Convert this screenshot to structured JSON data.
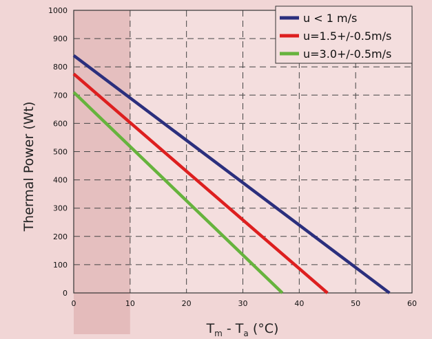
{
  "chart_data": {
    "type": "line",
    "xlabel_main": "T",
    "xlabel_sub_m": "m",
    "xlabel_mid": " - T",
    "xlabel_sub_a": "a",
    "xlabel_unit": " (°C)",
    "ylabel": "Thermal Power (Wt)",
    "xlim": [
      0,
      60
    ],
    "ylim": [
      0,
      1000
    ],
    "x_ticks": [
      0,
      10,
      20,
      30,
      40,
      50,
      60
    ],
    "y_ticks": [
      0,
      100,
      200,
      300,
      400,
      500,
      600,
      700,
      800,
      900,
      1000
    ],
    "grid": true,
    "legend_position": "top-right",
    "shaded_region": {
      "x": [
        0,
        10
      ]
    },
    "series": [
      {
        "name": "u < 1 m/s",
        "color": "#2b2f7d",
        "x": [
          0,
          56
        ],
        "y": [
          840,
          0
        ]
      },
      {
        "name": "u=1.5+/-0.5m/s",
        "color": "#dd1f1f",
        "x": [
          0,
          45
        ],
        "y": [
          775,
          0
        ]
      },
      {
        "name": "u=3.0+/-0.5m/s",
        "color": "#66b33d",
        "x": [
          0,
          37
        ],
        "y": [
          710,
          0
        ]
      }
    ]
  }
}
